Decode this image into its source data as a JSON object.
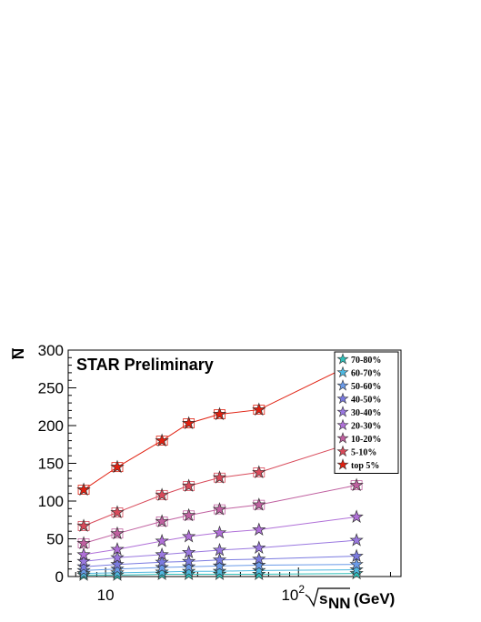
{
  "chart_data": {
    "type": "scatter",
    "annotation": "STAR Preliminary",
    "ylabel": "N",
    "xlabel": "(GeV)",
    "xlabel_sqrt": "s",
    "xlabel_sub": "NN",
    "xscale": "log",
    "xlim": [
      6.4,
      340
    ],
    "ylim": [
      0,
      300
    ],
    "x_tick_labels": [
      {
        "value": 10,
        "base": "10",
        "exp": ""
      },
      {
        "value": 100,
        "base": "10",
        "exp": "2"
      }
    ],
    "y_ticks": [
      0,
      50,
      100,
      150,
      200,
      250,
      300
    ],
    "grid": false,
    "legend_position": "top-right",
    "x": [
      7.7,
      11.5,
      19.6,
      27,
      39,
      62.4,
      200
    ],
    "series": [
      {
        "name": "70-80%",
        "color": "#2fbfb8",
        "values": [
          2,
          2,
          3,
          3,
          3,
          3,
          4
        ]
      },
      {
        "name": "60-70%",
        "color": "#4fb8e0",
        "values": [
          4,
          5,
          6,
          7,
          7,
          8,
          9
        ]
      },
      {
        "name": "50-60%",
        "color": "#6a9ae8",
        "values": [
          8,
          10,
          12,
          13,
          14,
          15,
          16
        ]
      },
      {
        "name": "40-50%",
        "color": "#7a7ae0",
        "values": [
          13,
          16,
          19,
          20,
          22,
          23,
          27
        ]
      },
      {
        "name": "30-40%",
        "color": "#9a78e0",
        "values": [
          20,
          25,
          29,
          32,
          35,
          38,
          48
        ]
      },
      {
        "name": "20-30%",
        "color": "#b070d8",
        "values": [
          29,
          36,
          47,
          53,
          58,
          62,
          79
        ]
      },
      {
        "name": "10-20%",
        "color": "#c060a0",
        "values": [
          44,
          57,
          73,
          81,
          89,
          95,
          121
        ]
      },
      {
        "name": "5-10%",
        "color": "#d84a5a",
        "values": [
          67,
          85,
          108,
          120,
          131,
          138,
          179
        ]
      },
      {
        "name": "top 5%",
        "color": "#e02010",
        "values": [
          115,
          145,
          180,
          203,
          215,
          221,
          284
        ]
      }
    ]
  }
}
